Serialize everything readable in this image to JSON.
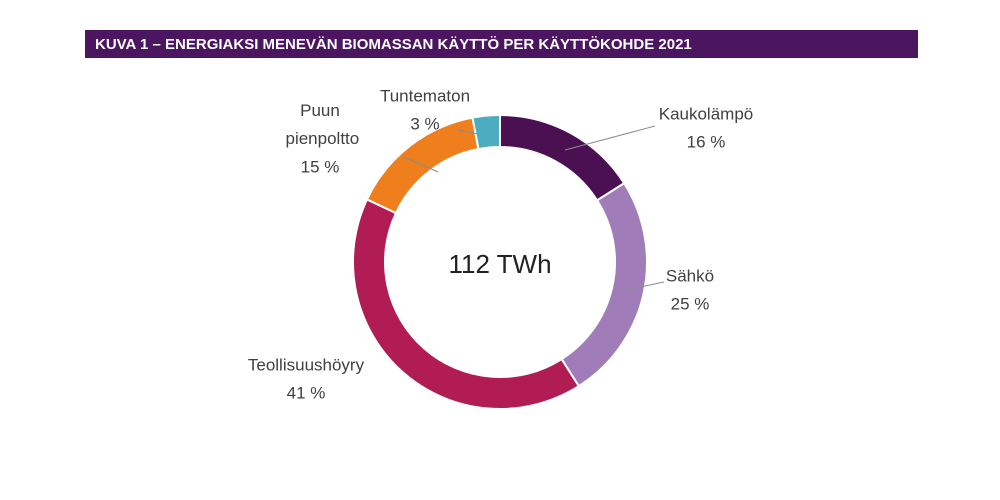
{
  "chart_data": {
    "type": "donut",
    "title": "KUVA 1 – ENERGIAKSI MENEVÄN BIOMASSAN KÄYTTÖ PER KÄYTTÖKOHDE 2021",
    "center_label": "112 TWh",
    "categories": [
      "Kaukolämpö",
      "Sähkö",
      "Teollisuushöyry",
      "Puun pienpoltto",
      "Tuntematon"
    ],
    "values": [
      16,
      25,
      41,
      15,
      3
    ],
    "value_labels": [
      "16 %",
      "25 %",
      "41 %",
      "15 %",
      "3 %"
    ],
    "colors": [
      "#4a1052",
      "#a07db8",
      "#b21c55",
      "#ee7f1c",
      "#4badbf"
    ]
  }
}
